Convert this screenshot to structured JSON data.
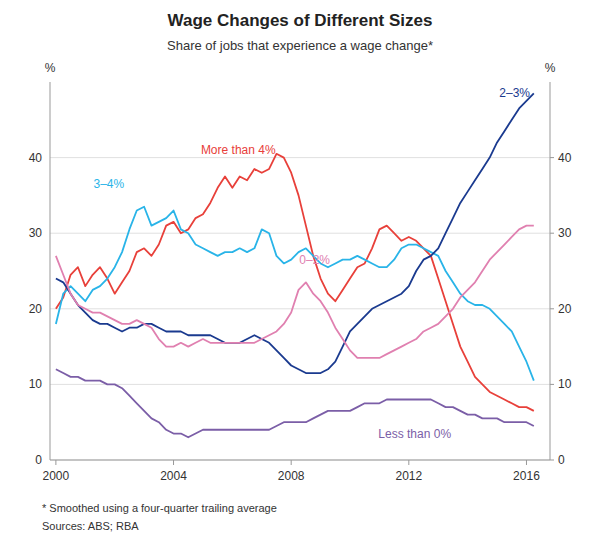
{
  "chart_data": {
    "type": "line",
    "title": "Wage Changes of Different Sizes",
    "subtitle": "Share of jobs that experience a wage change*",
    "footnote": "*    Smoothed using a four-quarter trailing average",
    "sources": "Sources:  ABS; RBA",
    "ylabel": "%",
    "y2label": "%",
    "xlim": [
      1999.8,
      2016.8
    ],
    "xticks": [
      2000,
      2004,
      2008,
      2012,
      2016
    ],
    "ylim": [
      0,
      50
    ],
    "yticks": [
      0,
      10,
      20,
      30,
      40
    ],
    "y2lim": [
      0,
      50
    ],
    "y2ticks": [
      0,
      10,
      20,
      30,
      40
    ],
    "grid": true,
    "x": [
      2000.0,
      2000.25,
      2000.5,
      2000.75,
      2001.0,
      2001.25,
      2001.5,
      2001.75,
      2002.0,
      2002.25,
      2002.5,
      2002.75,
      2003.0,
      2003.25,
      2003.5,
      2003.75,
      2004.0,
      2004.25,
      2004.5,
      2004.75,
      2005.0,
      2005.25,
      2005.5,
      2005.75,
      2006.0,
      2006.25,
      2006.5,
      2006.75,
      2007.0,
      2007.25,
      2007.5,
      2007.75,
      2008.0,
      2008.25,
      2008.5,
      2008.75,
      2009.0,
      2009.25,
      2009.5,
      2009.75,
      2010.0,
      2010.25,
      2010.5,
      2010.75,
      2011.0,
      2011.25,
      2011.5,
      2011.75,
      2012.0,
      2012.25,
      2012.5,
      2012.75,
      2013.0,
      2013.25,
      2013.5,
      2013.75,
      2014.0,
      2014.25,
      2014.5,
      2014.75,
      2015.0,
      2015.25,
      2015.5,
      2015.75,
      2016.0,
      2016.25
    ],
    "series": [
      {
        "name": "More than 4%",
        "color": "#e8403a",
        "values": [
          20.0,
          21.5,
          24.5,
          25.5,
          23.0,
          24.5,
          25.5,
          24.0,
          22.0,
          23.5,
          25.0,
          27.5,
          28.0,
          27.0,
          28.5,
          31.0,
          31.5,
          30.0,
          30.5,
          32.0,
          32.5,
          34.0,
          36.0,
          37.5,
          36.0,
          37.5,
          37.0,
          38.5,
          38.0,
          38.5,
          40.5,
          40.0,
          38.0,
          35.0,
          31.0,
          27.0,
          24.0,
          22.0,
          21.0,
          22.5,
          24.0,
          25.5,
          26.0,
          28.0,
          30.5,
          31.0,
          30.0,
          29.0,
          29.5,
          29.0,
          28.0,
          27.0,
          24.0,
          21.0,
          18.0,
          15.0,
          13.0,
          11.0,
          10.0,
          9.0,
          8.5,
          8.0,
          7.5,
          7.0,
          7.0,
          6.5
        ]
      },
      {
        "name": "3–4%",
        "color": "#29b4e8",
        "values": [
          18.0,
          22.0,
          23.0,
          22.0,
          21.0,
          22.5,
          23.0,
          24.0,
          25.5,
          27.5,
          30.5,
          33.0,
          33.5,
          31.0,
          31.5,
          32.0,
          33.0,
          30.5,
          30.0,
          28.5,
          28.0,
          27.5,
          27.0,
          27.5,
          27.5,
          28.0,
          27.5,
          28.0,
          30.5,
          30.0,
          27.0,
          26.0,
          26.5,
          27.5,
          28.0,
          27.0,
          26.0,
          25.5,
          26.0,
          26.5,
          26.5,
          27.0,
          26.5,
          26.0,
          25.5,
          25.5,
          26.5,
          28.0,
          28.5,
          28.5,
          28.0,
          27.5,
          27.0,
          25.0,
          23.5,
          22.0,
          21.0,
          20.5,
          20.5,
          20.0,
          19.0,
          18.0,
          17.0,
          15.0,
          13.0,
          10.5
        ]
      },
      {
        "name": "2–3%",
        "color": "#1a3a8f",
        "values": [
          24.0,
          23.5,
          22.0,
          20.5,
          19.5,
          18.5,
          18.0,
          18.0,
          17.5,
          17.0,
          17.5,
          17.5,
          18.0,
          18.0,
          17.5,
          17.0,
          17.0,
          17.0,
          16.5,
          16.5,
          16.5,
          16.5,
          16.0,
          15.5,
          15.5,
          15.5,
          16.0,
          16.5,
          16.0,
          15.5,
          14.5,
          13.5,
          12.5,
          12.0,
          11.5,
          11.5,
          11.5,
          12.0,
          13.0,
          15.0,
          17.0,
          18.0,
          19.0,
          20.0,
          20.5,
          21.0,
          21.5,
          22.0,
          23.0,
          25.0,
          26.5,
          27.0,
          28.0,
          30.0,
          32.0,
          34.0,
          35.5,
          37.0,
          38.5,
          40.0,
          42.0,
          43.5,
          45.0,
          46.5,
          47.5,
          48.5
        ]
      },
      {
        "name": "0–2%",
        "color": "#e080b0",
        "values": [
          27.0,
          24.5,
          22.0,
          20.5,
          20.0,
          19.5,
          19.5,
          19.0,
          18.5,
          18.0,
          18.0,
          18.5,
          18.0,
          17.5,
          16.0,
          15.0,
          15.0,
          15.5,
          15.0,
          15.5,
          16.0,
          15.5,
          15.5,
          15.5,
          15.5,
          15.5,
          15.5,
          15.5,
          16.0,
          16.5,
          17.0,
          18.0,
          19.5,
          22.5,
          23.5,
          22.0,
          21.0,
          19.5,
          17.5,
          16.0,
          14.5,
          13.5,
          13.5,
          13.5,
          13.5,
          14.0,
          14.5,
          15.0,
          15.5,
          16.0,
          17.0,
          17.5,
          18.0,
          19.0,
          20.0,
          21.5,
          22.5,
          23.5,
          25.0,
          26.5,
          27.5,
          28.5,
          29.5,
          30.5,
          31.0,
          31.0
        ]
      },
      {
        "name": "Less than 0%",
        "color": "#7b5ea7",
        "values": [
          12.0,
          11.5,
          11.0,
          11.0,
          10.5,
          10.5,
          10.5,
          10.0,
          10.0,
          9.5,
          8.5,
          7.5,
          6.5,
          5.5,
          5.0,
          4.0,
          3.5,
          3.5,
          3.0,
          3.5,
          4.0,
          4.0,
          4.0,
          4.0,
          4.0,
          4.0,
          4.0,
          4.0,
          4.0,
          4.0,
          4.5,
          5.0,
          5.0,
          5.0,
          5.0,
          5.5,
          6.0,
          6.5,
          6.5,
          6.5,
          6.5,
          7.0,
          7.5,
          7.5,
          7.5,
          8.0,
          8.0,
          8.0,
          8.0,
          8.0,
          8.0,
          8.0,
          7.5,
          7.0,
          7.0,
          6.5,
          6.0,
          6.0,
          5.5,
          5.5,
          5.5,
          5.0,
          5.0,
          5.0,
          5.0,
          4.5
        ]
      }
    ],
    "annotations": [
      {
        "text": "More than 4%",
        "x": 2006.2,
        "y": 41.0,
        "color": "#e8403a"
      },
      {
        "text": "3–4%",
        "x": 2001.8,
        "y": 36.5,
        "color": "#29b4e8"
      },
      {
        "text": "2–3%",
        "x": 2015.6,
        "y": 48.5,
        "color": "#1a3a8f"
      },
      {
        "text": "0–2%",
        "x": 2008.8,
        "y": 26.5,
        "color": "#e080b0"
      },
      {
        "text": "Less than 0%",
        "x": 2012.2,
        "y": 3.5,
        "color": "#7b5ea7"
      }
    ]
  }
}
